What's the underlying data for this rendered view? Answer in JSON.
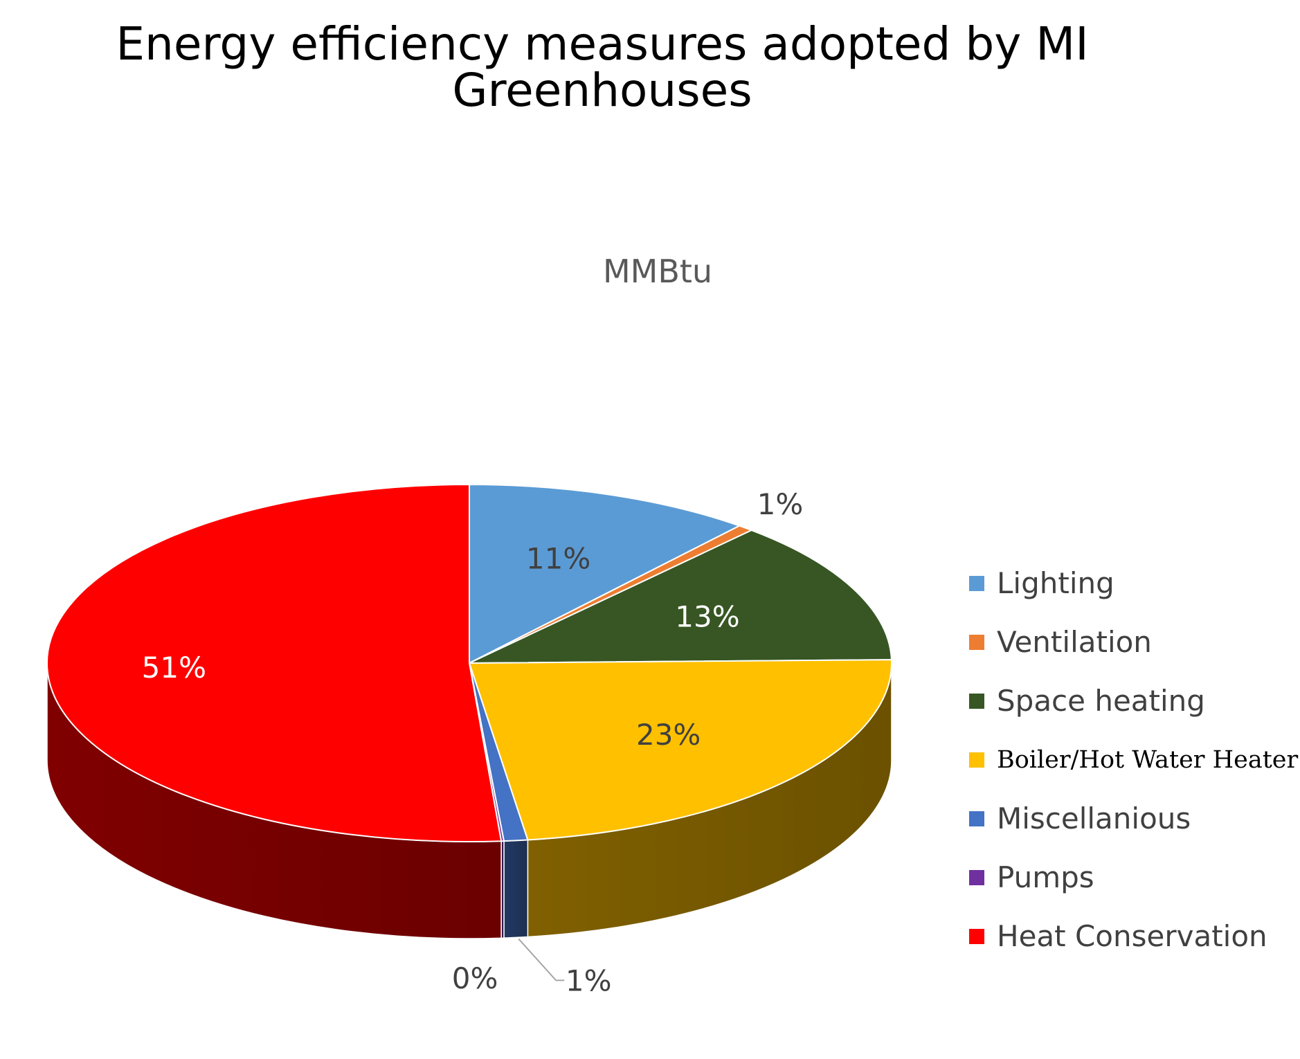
{
  "chart_data": {
    "type": "pie",
    "style": "3d",
    "title": "Energy efficiency measures adopted by MI Greenhouses",
    "title_lines": [
      "Energy efficiency measures adopted by MI",
      "Greenhouses"
    ],
    "subtitle": "MMBtu",
    "legend_position": "right",
    "slices": [
      {
        "name": "Lighting",
        "value": 11,
        "label": "11%",
        "color": "#5b9bd5",
        "label_color": "#404040"
      },
      {
        "name": "Ventilation",
        "value": 0.6,
        "label": "1%",
        "color": "#ed7d31",
        "label_color": "#404040"
      },
      {
        "name": "Space heating",
        "value": 13,
        "label": "13%",
        "color": "#375623",
        "label_color": "#ffffff"
      },
      {
        "name": "Boiler/Hot Water Heater",
        "value": 23,
        "label": "23%",
        "color": "#ffc000",
        "label_color": "#404040"
      },
      {
        "name": "Miscellanious",
        "value": 0.9,
        "label": "1%",
        "color": "#4472c4",
        "label_color": "#404040"
      },
      {
        "name": "Pumps",
        "value": 0.1,
        "label": "0%",
        "color": "#7030a0",
        "label_color": "#404040"
      },
      {
        "name": "Heat Conservation",
        "value": 51,
        "label": "51%",
        "color": "#ff0000",
        "label_color": "#ffffff"
      }
    ]
  }
}
